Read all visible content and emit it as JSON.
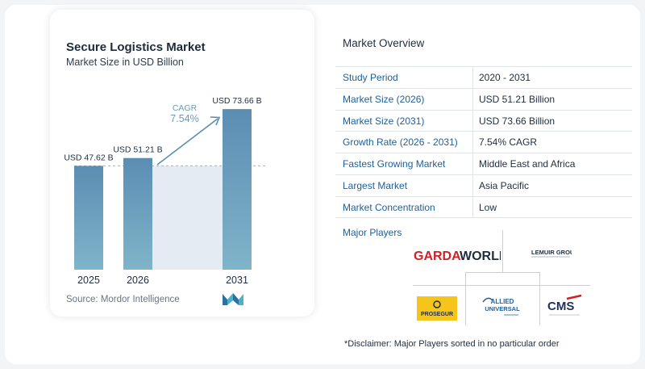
{
  "header": {
    "title": "Secure Logistics Market",
    "subtitle": "Market Size in USD Billion"
  },
  "chart_data": {
    "type": "bar",
    "categories": [
      "2025",
      "2026",
      "2031"
    ],
    "values": [
      47.62,
      51.21,
      73.66
    ],
    "data_labels": [
      "USD 47.62 B",
      "USD 51.21 B",
      "USD 73.66 B"
    ],
    "title": "Secure Logistics Market",
    "subtitle": "Market Size in USD Billion",
    "xlabel": "",
    "ylabel": "",
    "ylim": [
      0,
      80
    ],
    "grid": false,
    "annotation": {
      "label": "CAGR",
      "value": "7.54%"
    }
  },
  "colors": {
    "bar": "#5b8db3",
    "bar_gradient_bottom": "#7fb2c9",
    "shaded_area": "#e4ebf2",
    "dashed_line": "#9fb1c2",
    "arrow": "#5b8db3",
    "table_label": "#1d5f9a"
  },
  "source": "Source: Mordor Intelligence",
  "overview": {
    "title": "Market Overview",
    "rows": [
      {
        "label": "Study Period",
        "value": "2020 - 2031"
      },
      {
        "label": "Market Size (2026)",
        "value": "USD 51.21 Billion"
      },
      {
        "label": "Market Size (2031)",
        "value": "USD 73.66 Billion"
      },
      {
        "label": "Growth Rate (2026 - 2031)",
        "value": "7.54% CAGR"
      },
      {
        "label": "Fastest Growing Market",
        "value": "Middle East and Africa"
      },
      {
        "label": "Largest Market",
        "value": "Asia Pacific"
      },
      {
        "label": "Market Concentration",
        "value": "Low"
      }
    ]
  },
  "players": {
    "title": "Major Players",
    "logos": [
      {
        "name": "GardaWorld",
        "text_a": "GARDA",
        "text_b": "WORLD"
      },
      {
        "name": "Lemuir Group",
        "text": "LEMUIR GROUP"
      },
      {
        "name": "Prosegur",
        "text": "PROSEGUR"
      },
      {
        "name": "Allied Universal",
        "text_a": "ALLIED",
        "text_b": "UNIVERSAL"
      },
      {
        "name": "CMS",
        "text": "CMS"
      }
    ]
  },
  "disclaimer": "*Disclaimer: Major Players sorted in no particular order"
}
